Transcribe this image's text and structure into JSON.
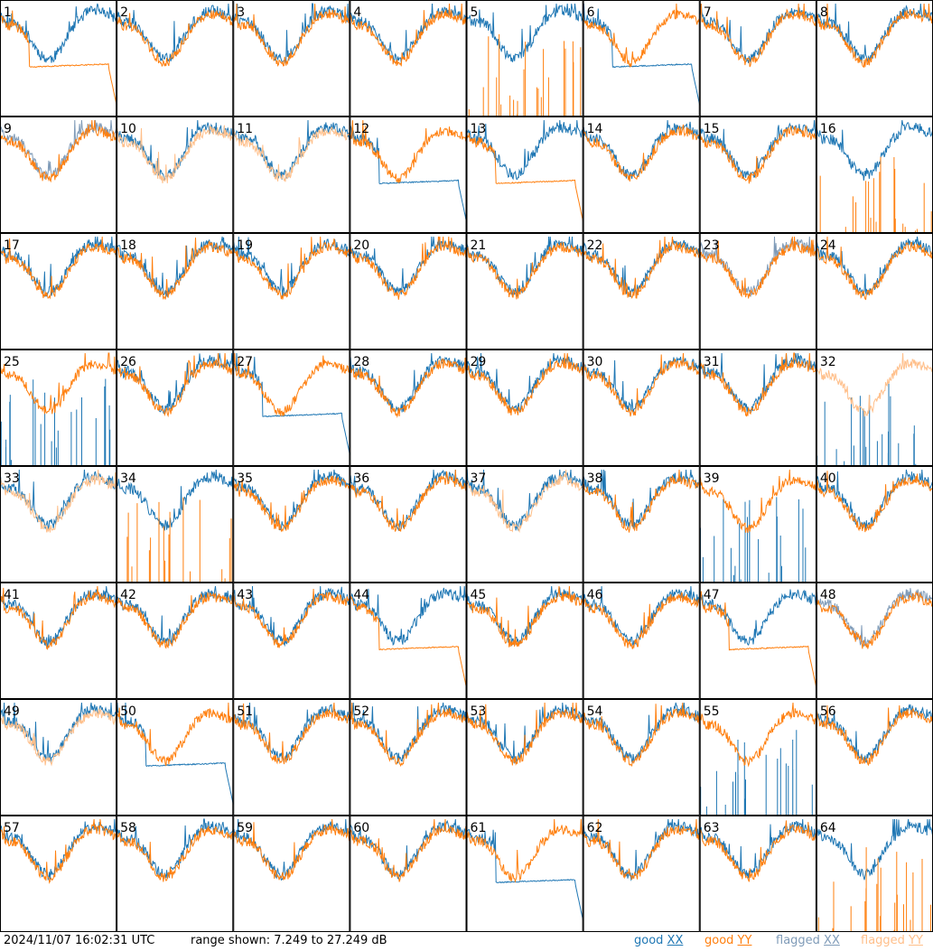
{
  "chart_data": {
    "type": "line",
    "description_grid": "8x8 grid of small multiples, one per tile",
    "tiles": [
      "1",
      "2",
      "3",
      "4",
      "5",
      "6",
      "7",
      "8",
      "9",
      "10",
      "11",
      "12",
      "13",
      "14",
      "15",
      "16",
      "17",
      "18",
      "19",
      "20",
      "21",
      "22",
      "23",
      "24",
      "25",
      "26",
      "27",
      "28",
      "29",
      "30",
      "31",
      "32",
      "33",
      "34",
      "35",
      "36",
      "37",
      "38",
      "39",
      "40",
      "41",
      "42",
      "43",
      "44",
      "45",
      "46",
      "47",
      "48",
      "49",
      "50",
      "51",
      "52",
      "53",
      "54",
      "55",
      "56",
      "57",
      "58",
      "59",
      "60",
      "61",
      "62",
      "63",
      "64"
    ],
    "ylim": [
      7.249,
      27.249
    ],
    "yunit": "dB",
    "series": [
      {
        "name": "good XX",
        "color": "#1f77b4"
      },
      {
        "name": "good YY",
        "color": "#ff7f0e"
      },
      {
        "name": "flagged XX",
        "color": "#7f9bb8"
      },
      {
        "name": "flagged YY",
        "color": "#ffbf8a"
      }
    ],
    "tile_status": {
      "flagged_xx_tiles": [
        "9",
        "23",
        "48"
      ],
      "flagged_yy_tiles": [
        "10",
        "11",
        "32",
        "33",
        "37",
        "49"
      ]
    }
  },
  "footer": {
    "timestamp": "2024/11/07 16:02:31 UTC",
    "range_text": "range shown: 7.249 to 27.249 dB"
  },
  "legend": [
    {
      "pre": "good ",
      "key": "XX",
      "color": "#1f77b4"
    },
    {
      "pre": "good ",
      "key": "YY",
      "color": "#ff7f0e"
    },
    {
      "pre": "flagged ",
      "key": "XX",
      "color": "#7f9bb8"
    },
    {
      "pre": "flagged ",
      "key": "YY",
      "color": "#ffbf8a"
    }
  ]
}
